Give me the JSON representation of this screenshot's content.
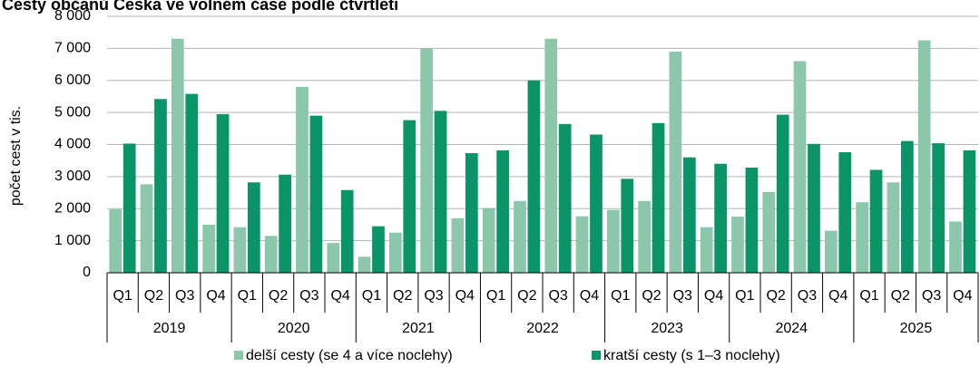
{
  "chart_data": {
    "type": "bar",
    "title": "Cesty občanů Česka ve volném čase podle čtvrtletí",
    "y_label": "počet cest v tis.",
    "categories": [
      "Q1",
      "Q2",
      "Q3",
      "Q4",
      "Q1",
      "Q2",
      "Q3",
      "Q4",
      "Q1",
      "Q2",
      "Q3",
      "Q4",
      "Q1",
      "Q2",
      "Q3",
      "Q4",
      "Q1",
      "Q2",
      "Q3",
      "Q4",
      "Q1",
      "Q2",
      "Q3",
      "Q4",
      "Q1",
      "Q2",
      "Q3",
      "Q4"
    ],
    "groups": [
      "2019",
      "2020",
      "2021",
      "2022",
      "2023",
      "2024",
      "2025"
    ],
    "series": [
      {
        "name": "delší cesty (se 4 a více noclehy)",
        "color": "#8cc7ab",
        "values": [
          1980,
          2760,
          7300,
          1500,
          1420,
          1150,
          5800,
          930,
          500,
          1250,
          7000,
          1700,
          2020,
          2240,
          7300,
          1760,
          1960,
          2240,
          6900,
          1420,
          1750,
          2520,
          6600,
          1310,
          2200,
          2820,
          7250,
          1600
        ]
      },
      {
        "name": "kratší cesty (s 1–3 noclehy)",
        "color": "#0b9468",
        "values": [
          4030,
          5420,
          5580,
          4950,
          2820,
          3060,
          4900,
          2580,
          1450,
          4760,
          5050,
          3730,
          3820,
          6000,
          4640,
          4310,
          2930,
          4670,
          3600,
          3400,
          3280,
          4930,
          4020,
          3760,
          3210,
          4110,
          4040,
          3820
        ]
      }
    ],
    "ylim": [
      0,
      8000
    ],
    "yticks": [
      0,
      {
        "value": 1000,
        "label": "1 000"
      },
      {
        "value": 2000,
        "label": "2 000"
      },
      {
        "value": 3000,
        "label": "3 000"
      },
      {
        "value": 4000,
        "label": "4 000"
      },
      {
        "value": 5000,
        "label": "5 000"
      },
      {
        "value": 6000,
        "label": "6 000"
      },
      {
        "value": 7000,
        "label": "7 000"
      },
      {
        "value": 8000,
        "label": "8 000"
      }
    ],
    "grid": true,
    "legend": "bottom"
  }
}
